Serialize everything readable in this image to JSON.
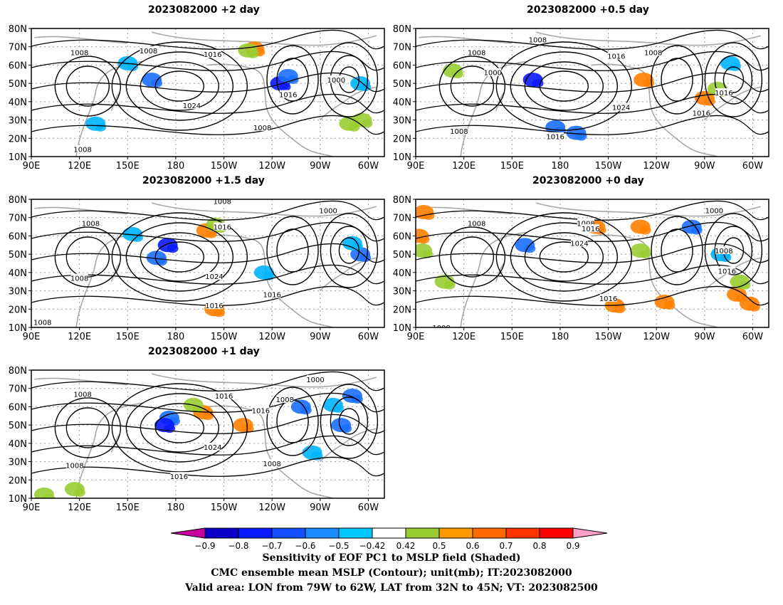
{
  "panels": [
    {
      "id": "p2",
      "title": "2023082000 +2 day",
      "blobs": [
        {
          "lon": 165,
          "lat": 52,
          "c": "#1a6fff"
        },
        {
          "lon": 130,
          "lat": 28,
          "c": "#00b4ff"
        },
        {
          "lon": 245,
          "lat": 50,
          "c": "#0a1aff"
        },
        {
          "lon": 250,
          "lat": 54,
          "c": "#1a6fff"
        },
        {
          "lon": 229,
          "lat": 69,
          "c": "#ff8000"
        },
        {
          "lon": 225,
          "lat": 68,
          "c": "#9acd32"
        },
        {
          "lon": 295,
          "lat": 50,
          "c": "#00b4ff"
        },
        {
          "lon": 288,
          "lat": 28,
          "c": "#9acd32"
        },
        {
          "lon": 150,
          "lat": 61,
          "c": "#00b4ff"
        },
        {
          "lon": 296,
          "lat": 30,
          "c": "#9acd32"
        }
      ],
      "labels": [
        {
          "lon": 120,
          "lat": 67,
          "t": "1008"
        },
        {
          "lon": 163,
          "lat": 68,
          "t": "1008"
        },
        {
          "lon": 203,
          "lat": 66,
          "t": "1016"
        },
        {
          "lon": 190,
          "lat": 38,
          "t": "1024"
        },
        {
          "lon": 250,
          "lat": 44,
          "t": "1016"
        },
        {
          "lon": 234,
          "lat": 26,
          "t": "1008"
        },
        {
          "lon": 280,
          "lat": 52,
          "t": "1000"
        },
        {
          "lon": 122,
          "lat": 14,
          "t": "1008"
        }
      ]
    },
    {
      "id": "p05",
      "title": "2023082000 +0.5 day",
      "blobs": [
        {
          "lon": 163,
          "lat": 52,
          "c": "#0a1aff"
        },
        {
          "lon": 177,
          "lat": 26,
          "c": "#1a6fff"
        },
        {
          "lon": 190,
          "lat": 23,
          "c": "#1a6fff"
        },
        {
          "lon": 270,
          "lat": 42,
          "c": "#ff8000"
        },
        {
          "lon": 278,
          "lat": 47,
          "c": "#9acd32"
        },
        {
          "lon": 232,
          "lat": 52,
          "c": "#ff8000"
        },
        {
          "lon": 286,
          "lat": 61,
          "c": "#00b4ff"
        },
        {
          "lon": 113,
          "lat": 57,
          "c": "#9acd32"
        }
      ],
      "labels": [
        {
          "lon": 128,
          "lat": 67,
          "t": "1008"
        },
        {
          "lon": 166,
          "lat": 74,
          "t": "1008"
        },
        {
          "lon": 215,
          "lat": 65,
          "t": "1016"
        },
        {
          "lon": 138,
          "lat": 56,
          "t": "1000"
        },
        {
          "lon": 218,
          "lat": 37,
          "t": "1024"
        },
        {
          "lon": 177,
          "lat": 21,
          "t": "1016"
        },
        {
          "lon": 117,
          "lat": 24,
          "t": "1008"
        },
        {
          "lon": 238,
          "lat": 67,
          "t": "1008"
        },
        {
          "lon": 268,
          "lat": 34,
          "t": "1016"
        },
        {
          "lon": 282,
          "lat": 45,
          "t": "1016"
        }
      ]
    },
    {
      "id": "p15",
      "title": "2023082000 +1.5 day",
      "blobs": [
        {
          "lon": 175,
          "lat": 55,
          "c": "#0a1aff"
        },
        {
          "lon": 168,
          "lat": 48,
          "c": "#1a6fff"
        },
        {
          "lon": 199,
          "lat": 63,
          "c": "#ff8000"
        },
        {
          "lon": 205,
          "lat": 66,
          "c": "#9acd32"
        },
        {
          "lon": 204,
          "lat": 20,
          "c": "#ff8000"
        },
        {
          "lon": 295,
          "lat": 50,
          "c": "#1a6fff"
        },
        {
          "lon": 290,
          "lat": 56,
          "c": "#00b4ff"
        },
        {
          "lon": 235,
          "lat": 40,
          "c": "#00b4ff"
        },
        {
          "lon": 153,
          "lat": 61,
          "c": "#00b4ff"
        }
      ],
      "labels": [
        {
          "lon": 127,
          "lat": 67,
          "t": "1008"
        },
        {
          "lon": 209,
          "lat": 79,
          "t": "1008"
        },
        {
          "lon": 209,
          "lat": 65,
          "t": "1016"
        },
        {
          "lon": 204,
          "lat": 38,
          "t": "1024"
        },
        {
          "lon": 204,
          "lat": 22,
          "t": "1016"
        },
        {
          "lon": 240,
          "lat": 28,
          "t": "1016"
        },
        {
          "lon": 275,
          "lat": 74,
          "t": "1000"
        },
        {
          "lon": 120,
          "lat": 37,
          "t": "1008"
        },
        {
          "lon": 97,
          "lat": 13,
          "t": "1008"
        }
      ]
    },
    {
      "id": "p0",
      "title": "2023082000 +0 day",
      "blobs": [
        {
          "lon": 95,
          "lat": 73,
          "c": "#ff8000"
        },
        {
          "lon": 92,
          "lat": 60,
          "c": "#ff8000"
        },
        {
          "lon": 94,
          "lat": 52,
          "c": "#9acd32"
        },
        {
          "lon": 158,
          "lat": 55,
          "c": "#1a6fff"
        },
        {
          "lon": 214,
          "lat": 22,
          "c": "#ff8000"
        },
        {
          "lon": 245,
          "lat": 24,
          "c": "#ff8000"
        },
        {
          "lon": 290,
          "lat": 28,
          "c": "#ff8000"
        },
        {
          "lon": 298,
          "lat": 23,
          "c": "#ff8000"
        },
        {
          "lon": 292,
          "lat": 35,
          "c": "#9acd32"
        },
        {
          "lon": 262,
          "lat": 65,
          "c": "#1a6fff"
        },
        {
          "lon": 280,
          "lat": 50,
          "c": "#00b4ff"
        },
        {
          "lon": 202,
          "lat": 65,
          "c": "#ff8000"
        },
        {
          "lon": 230,
          "lat": 65,
          "c": "#ff8000"
        },
        {
          "lon": 230,
          "lat": 52,
          "c": "#9acd32"
        },
        {
          "lon": 108,
          "lat": 35,
          "c": "#9acd32"
        }
      ],
      "labels": [
        {
          "lon": 128,
          "lat": 67,
          "t": "1008"
        },
        {
          "lon": 196,
          "lat": 67,
          "t": "1008"
        },
        {
          "lon": 199,
          "lat": 64,
          "t": "1016"
        },
        {
          "lon": 192,
          "lat": 56,
          "t": "1024"
        },
        {
          "lon": 276,
          "lat": 74,
          "t": "1000"
        },
        {
          "lon": 282,
          "lat": 52,
          "t": "1008"
        },
        {
          "lon": 284,
          "lat": 41,
          "t": "1016"
        },
        {
          "lon": 210,
          "lat": 26,
          "t": "1016"
        },
        {
          "lon": 106,
          "lat": 10,
          "t": "1008"
        }
      ]
    },
    {
      "id": "p1",
      "title": "2023082000 +1 day",
      "blobs": [
        {
          "lon": 176,
          "lat": 54,
          "c": "#1a6fff"
        },
        {
          "lon": 173,
          "lat": 50,
          "c": "#0a1aff"
        },
        {
          "lon": 197,
          "lat": 57,
          "c": "#ff8000"
        },
        {
          "lon": 191,
          "lat": 61,
          "c": "#9acd32"
        },
        {
          "lon": 222,
          "lat": 50,
          "c": "#ff8000"
        },
        {
          "lon": 258,
          "lat": 60,
          "c": "#1a6fff"
        },
        {
          "lon": 278,
          "lat": 61,
          "c": "#00b4ff"
        },
        {
          "lon": 283,
          "lat": 50,
          "c": "#1a6fff"
        },
        {
          "lon": 290,
          "lat": 66,
          "c": "#1a6fff"
        },
        {
          "lon": 117,
          "lat": 15,
          "c": "#9acd32"
        },
        {
          "lon": 98,
          "lat": 12,
          "c": "#9acd32"
        },
        {
          "lon": 265,
          "lat": 35,
          "c": "#00b4ff"
        }
      ],
      "labels": [
        {
          "lon": 122,
          "lat": 67,
          "t": "1008"
        },
        {
          "lon": 210,
          "lat": 66,
          "t": "1016"
        },
        {
          "lon": 203,
          "lat": 38,
          "t": "1024"
        },
        {
          "lon": 182,
          "lat": 22,
          "t": "1016"
        },
        {
          "lon": 240,
          "lat": 29,
          "t": "1008"
        },
        {
          "lon": 233,
          "lat": 58,
          "t": "1016"
        },
        {
          "lon": 248,
          "lat": 64,
          "t": "1008"
        },
        {
          "lon": 267,
          "lat": 75,
          "t": "1000"
        },
        {
          "lon": 117,
          "lat": 28,
          "t": "1008"
        }
      ]
    }
  ],
  "axes": {
    "lat_ticks": [
      "10N",
      "20N",
      "30N",
      "40N",
      "50N",
      "60N",
      "70N",
      "80N"
    ],
    "lat_values": [
      10,
      20,
      30,
      40,
      50,
      60,
      70,
      80
    ],
    "lon_ticks": [
      "90E",
      "120E",
      "150E",
      "180",
      "150W",
      "120W",
      "90W",
      "60W"
    ],
    "lon_values": [
      90,
      120,
      150,
      180,
      210,
      240,
      270,
      300
    ],
    "lon_range": [
      90,
      310
    ],
    "lat_range": [
      10,
      80
    ]
  },
  "colorbar": {
    "labels": [
      "-0.9",
      "-0.8",
      "-0.7",
      "-0.6",
      "-0.5",
      "-0.42",
      "0.42",
      "0.5",
      "0.6",
      "0.7",
      "0.8",
      "0.9"
    ],
    "colors": [
      "#0a00c8",
      "#0a1aff",
      "#1450ff",
      "#1a8cff",
      "#00c8ff",
      "#ffffff",
      "#9acd32",
      "#ff9900",
      "#ff6a00",
      "#ff3300",
      "#ff0000"
    ],
    "low_cap_color": "#c800a0",
    "high_cap_color": "#ffa0c8"
  },
  "caption": {
    "line1": "Sensitivity of EOF PC1 to MSLP field (Shaded)",
    "line2": "CMC ensemble mean MSLP (Contour); unit(mb); IT:2023082000",
    "line3": "Valid area: LON from 79W to 62W, LAT from 32N to 45N; VT: 2023082500"
  }
}
